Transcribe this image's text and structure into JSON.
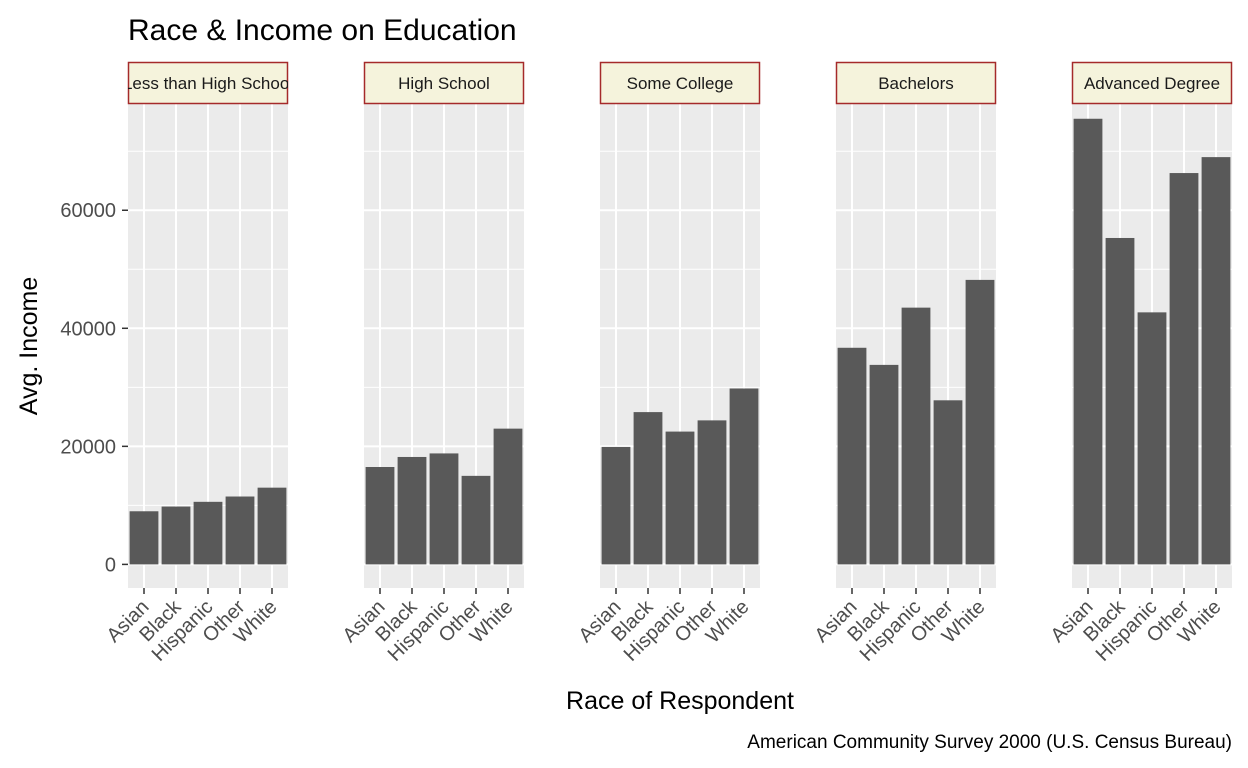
{
  "chart_data": {
    "type": "bar",
    "title": "Race & Income on Education",
    "caption": "American Community Survey 2000 (U.S. Census Bureau)",
    "xlabel": "Race of Respondent",
    "ylabel": "Avg. Income",
    "categories": [
      "Asian",
      "Black",
      "Hispanic",
      "Other",
      "White"
    ],
    "ylim": [
      -4000,
      78000
    ],
    "yticks": [
      0,
      20000,
      40000,
      60000
    ],
    "ytick_labels": [
      "0",
      "20000",
      "40000",
      "60000"
    ],
    "grid": true,
    "facet_strip_fill": "#f5f3dc",
    "facet_strip_border": "#a52a2a",
    "panel_background": "#ebebeb",
    "bar_color": "#595959",
    "facets": [
      {
        "name": "Less than High School",
        "values": [
          9000,
          9800,
          10600,
          11500,
          13000
        ]
      },
      {
        "name": "High School",
        "values": [
          16500,
          18200,
          18800,
          15000,
          23000
        ]
      },
      {
        "name": "Some College",
        "values": [
          19900,
          25800,
          22500,
          24400,
          29800
        ]
      },
      {
        "name": "Bachelors",
        "values": [
          36700,
          33800,
          43500,
          27800,
          48200
        ]
      },
      {
        "name": "Advanced Degree",
        "values": [
          75500,
          55300,
          42700,
          66300,
          69000
        ]
      }
    ]
  }
}
